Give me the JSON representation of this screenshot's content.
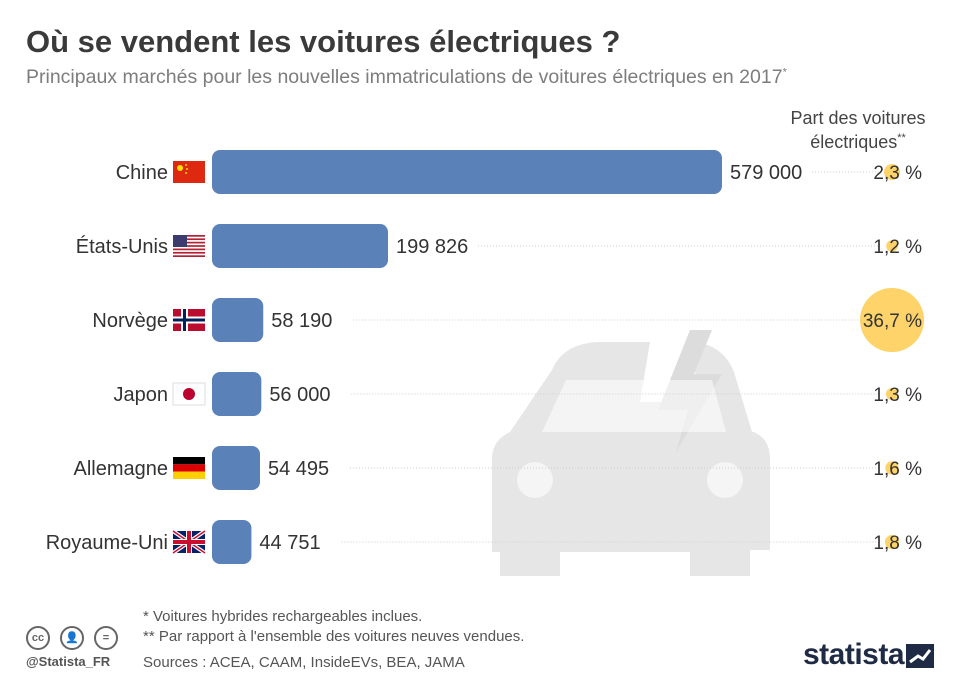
{
  "header": {
    "title": "Où se vendent les voitures électriques ?",
    "subtitle": "Principaux marchés pour les nouvelles immatriculations de voitures électriques en 2017",
    "subtitle_mark": "*"
  },
  "share_header": {
    "line1": "Part des voitures",
    "line2": "électriques",
    "mark": "**"
  },
  "chart_data": {
    "type": "bar",
    "orientation": "horizontal",
    "categories": [
      "Chine",
      "États-Unis",
      "Norvège",
      "Japon",
      "Allemagne",
      "Royaume-Uni"
    ],
    "values": [
      579000,
      199826,
      58190,
      56000,
      54495,
      44751
    ],
    "value_labels": [
      "579 000",
      "199 826",
      "58 190",
      "56 000",
      "54 495",
      "44 751"
    ],
    "share_values": [
      2.3,
      1.2,
      36.7,
      1.3,
      1.6,
      1.8
    ],
    "share_labels": [
      "2,3 %",
      "1,2 %",
      "36,7 %",
      "1,3 %",
      "1,6 %",
      "1,8 %"
    ],
    "flags": [
      "china-flag",
      "usa-flag",
      "norway-flag",
      "japan-flag",
      "germany-flag",
      "uk-flag"
    ],
    "bar_color": "#5b82b8",
    "bubble_color": "#fdd36a",
    "ylim": [
      0,
      579000
    ]
  },
  "footer": {
    "note1": "*   Voitures hybrides rechargeables inclues.",
    "note2": "** Par rapport à l'ensemble des voitures neuves vendues.",
    "sources": "Sources : ACEA, CAAM, InsideEVs, BEA, JAMA",
    "handle": "@Statista_FR",
    "brand": "statista",
    "cc_icons": [
      "cc-icon",
      "by-icon",
      "nd-icon"
    ],
    "background_icon": "electric-car-icon"
  }
}
